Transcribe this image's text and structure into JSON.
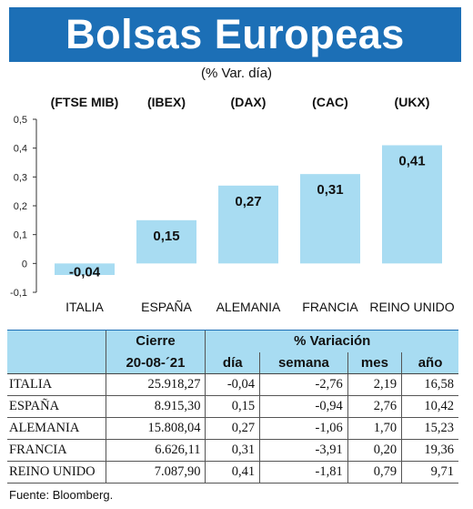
{
  "header": {
    "title": "Bolsas Europeas",
    "subtitle": "(% Var. día)"
  },
  "chart_data": {
    "type": "bar",
    "categories": [
      "ITALIA",
      "ESPAÑA",
      "ALEMANIA",
      "FRANCIA",
      "REINO UNIDO"
    ],
    "index_labels": [
      "(FTSE MIB)",
      "(IBEX)",
      "(DAX)",
      "(CAC)",
      "(UKX)"
    ],
    "values": [
      -0.04,
      0.15,
      0.27,
      0.31,
      0.41
    ],
    "value_labels": [
      "-0,04",
      "0,15",
      "0,27",
      "0,31",
      "0,41"
    ],
    "ylim": [
      -0.1,
      0.5
    ],
    "yticks": [
      -0.1,
      0,
      0.1,
      0.2,
      0.3,
      0.4,
      0.5
    ],
    "ytick_labels": [
      "-0,1",
      "0",
      "0,1",
      "0,2",
      "0,3",
      "0,4",
      "0,5"
    ],
    "bar_color": "#a8dcf2",
    "grid": false
  },
  "table": {
    "group_headers": [
      "Cierre",
      "% Variación"
    ],
    "sub_headers": [
      "20-08-´21",
      "día",
      "semana",
      "mes",
      "año"
    ],
    "rows": [
      {
        "name": "ITALIA",
        "cierre": "25.918,27",
        "dia": "-0,04",
        "semana": "-2,76",
        "mes": "2,19",
        "ano": "16,58"
      },
      {
        "name": "ESPAÑA",
        "cierre": "8.915,30",
        "dia": "0,15",
        "semana": "-0,94",
        "mes": "2,76",
        "ano": "10,42"
      },
      {
        "name": "ALEMANIA",
        "cierre": "15.808,04",
        "dia": "0,27",
        "semana": "-1,06",
        "mes": "1,70",
        "ano": "15,23"
      },
      {
        "name": "FRANCIA",
        "cierre": "6.626,11",
        "dia": "0,31",
        "semana": "-3,91",
        "mes": "0,20",
        "ano": "19,36"
      },
      {
        "name": "REINO UNIDO",
        "cierre": "7.087,90",
        "dia": "0,41",
        "semana": "-1,81",
        "mes": "0,79",
        "ano": "9,71"
      }
    ]
  },
  "source": "Fuente: Bloomberg.",
  "colors": {
    "banner": "#1c6fb6",
    "bar": "#a8dcf2",
    "table_header": "#a8dcf2"
  }
}
